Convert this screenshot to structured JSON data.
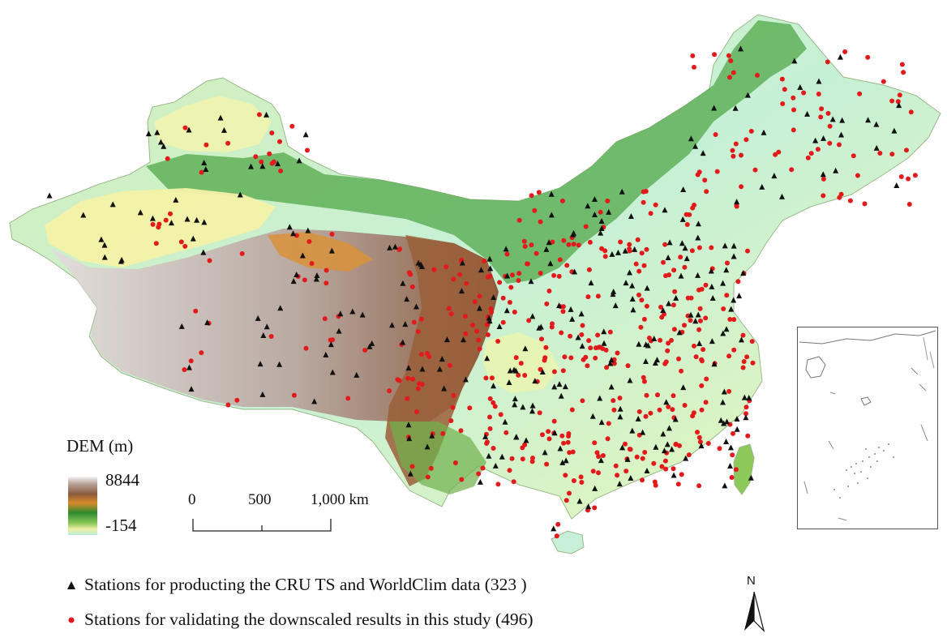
{
  "legend": {
    "title": "DEM (m)",
    "max_label": "8844",
    "min_label": "-154",
    "items": [
      {
        "symbol": "black-triangle",
        "color": "#111111",
        "text": "Stations for producting the CRU TS and WorldClim data (323 )"
      },
      {
        "symbol": "red-dot",
        "color": "#e31a1c",
        "text": "Stations for validating the downscaled results in this study (496)"
      }
    ]
  },
  "scale_bar": {
    "labels": [
      "0",
      "500",
      "1,000 km"
    ]
  },
  "north_arrow": {
    "label": "N"
  },
  "colors": {
    "station_triangle": "#111111",
    "station_dot": "#e31a1c",
    "lowland": "#c8f0d8",
    "plain": "#ecf5b4",
    "green": "#3c9a3c",
    "brown": "#8a5a3e",
    "highland": "#c9c0bb"
  }
}
